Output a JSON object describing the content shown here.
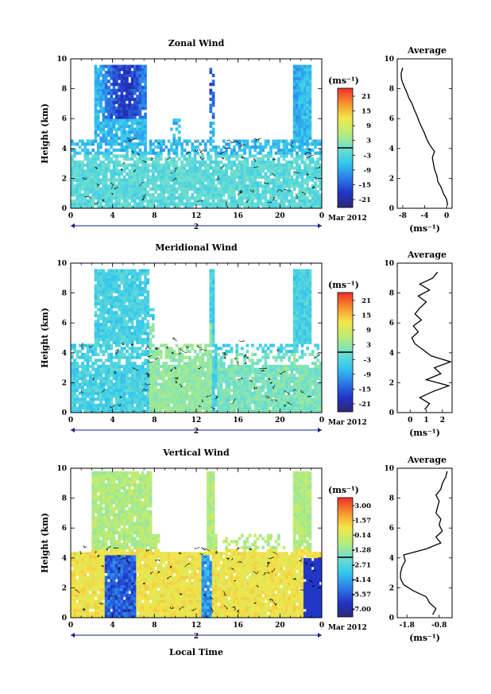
{
  "chart_data": [
    {
      "type": "heatmap",
      "title": "Zonal Wind",
      "xlabel": "",
      "ylabel": "Height (km)",
      "xlim": [
        0,
        24
      ],
      "ylim": [
        0,
        10
      ],
      "xticks": [
        "0",
        "4",
        "8",
        "12",
        "16",
        "20",
        "0"
      ],
      "yticks": [
        "0",
        "2",
        "4",
        "6",
        "8",
        "10"
      ],
      "date_label": "2",
      "month_label": "Mar 2012",
      "colorbar": {
        "unit_label": "(ms⁻¹)",
        "ticks": [
          "21",
          "15",
          "9",
          "3",
          "-3",
          "-9",
          "-15",
          "-21"
        ],
        "range": [
          -24,
          24
        ]
      },
      "average_profile": {
        "title": "Average",
        "xlabel": "(ms⁻¹)",
        "xticks": [
          "-8",
          "-4",
          "0"
        ],
        "xlim": [
          -9,
          1
        ],
        "yticks": [
          "0",
          "2",
          "4",
          "6",
          "8",
          "10"
        ],
        "height_km": [
          0.2,
          0.6,
          1.0,
          1.4,
          1.8,
          2.2,
          2.6,
          3.0,
          3.4,
          3.8,
          4.2,
          4.6,
          5.0,
          5.4,
          5.8,
          6.2,
          6.6,
          7.0,
          7.4,
          7.8,
          8.2,
          8.6,
          9.0,
          9.4
        ],
        "values": [
          0.2,
          0.0,
          -0.6,
          -1.0,
          -1.6,
          -1.8,
          -2.2,
          -2.4,
          -2.6,
          -2.2,
          -3.0,
          -3.6,
          -4.0,
          -4.5,
          -5.0,
          -5.4,
          -5.9,
          -6.3,
          -6.9,
          -7.3,
          -7.8,
          -8.2,
          -8.3,
          -8.0
        ]
      }
    },
    {
      "type": "heatmap",
      "title": "Meridional Wind",
      "xlabel": "",
      "ylabel": "Height (km)",
      "xlim": [
        0,
        24
      ],
      "ylim": [
        0,
        10
      ],
      "xticks": [
        "0",
        "4",
        "8",
        "12",
        "16",
        "20",
        "0"
      ],
      "yticks": [
        "0",
        "2",
        "4",
        "6",
        "8",
        "10"
      ],
      "date_label": "2",
      "month_label": "Mar 2012",
      "colorbar": {
        "unit_label": "(ms⁻¹)",
        "ticks": [
          "21",
          "15",
          "9",
          "3",
          "-3",
          "-9",
          "-15",
          "-21"
        ],
        "range": [
          -24,
          24
        ]
      },
      "average_profile": {
        "title": "Average",
        "xlabel": "(ms⁻¹)",
        "xticks": [
          "0",
          "1",
          "2"
        ],
        "xlim": [
          -0.8,
          2.6
        ],
        "yticks": [
          "0",
          "2",
          "4",
          "6",
          "8",
          "10"
        ],
        "height_km": [
          0.2,
          0.6,
          1.0,
          1.4,
          1.8,
          2.2,
          2.6,
          3.0,
          3.4,
          3.8,
          4.2,
          4.6,
          5.0,
          5.4,
          5.8,
          6.2,
          6.6,
          7.0,
          7.4,
          7.8,
          8.2,
          8.6,
          9.0,
          9.4
        ],
        "values": [
          0.9,
          1.2,
          0.6,
          1.4,
          2.4,
          1.0,
          1.9,
          1.5,
          2.5,
          1.3,
          0.8,
          0.3,
          0.1,
          0.5,
          0.2,
          0.7,
          0.3,
          0.6,
          1.0,
          0.5,
          1.2,
          0.6,
          1.4,
          1.7
        ]
      }
    },
    {
      "type": "heatmap",
      "title": "Vertical Wind",
      "xlabel": "Local Time",
      "ylabel": "Height (km)",
      "xlim": [
        0,
        24
      ],
      "ylim": [
        0,
        10
      ],
      "xticks": [
        "0",
        "4",
        "8",
        "12",
        "16",
        "20",
        "0"
      ],
      "yticks": [
        "0",
        "2",
        "4",
        "6",
        "8",
        "10"
      ],
      "date_label": "2",
      "month_label": "Mar 2012",
      "colorbar": {
        "unit_label": "(ms⁻¹)",
        "ticks": [
          "3.00",
          "1.57",
          "0.14",
          "-1.28",
          "-2.71",
          "-4.14",
          "-5.57",
          "-7.00"
        ],
        "range": [
          -8.0,
          4.0
        ]
      },
      "average_profile": {
        "title": "Average",
        "xlabel": "(ms⁻¹)",
        "xticks": [
          "-1.8",
          "-0.8"
        ],
        "xlim": [
          -2.1,
          -0.4
        ],
        "yticks": [
          "0",
          "2",
          "4",
          "6",
          "8",
          "10"
        ],
        "height_km": [
          0.2,
          0.6,
          1.0,
          1.4,
          1.8,
          2.2,
          2.6,
          3.0,
          3.4,
          3.8,
          4.2,
          4.6,
          5.0,
          5.4,
          5.8,
          6.2,
          6.6,
          7.0,
          7.4,
          7.8,
          8.2,
          8.6,
          9.0,
          9.4,
          9.8
        ],
        "values": [
          -1.0,
          -0.9,
          -1.1,
          -1.2,
          -1.6,
          -1.9,
          -2.0,
          -2.0,
          -1.95,
          -1.85,
          -1.9,
          -1.2,
          -0.75,
          -0.9,
          -0.7,
          -0.8,
          -0.75,
          -0.9,
          -0.85,
          -0.8,
          -0.9,
          -0.75,
          -0.7,
          -0.6,
          -0.55
        ]
      }
    }
  ]
}
